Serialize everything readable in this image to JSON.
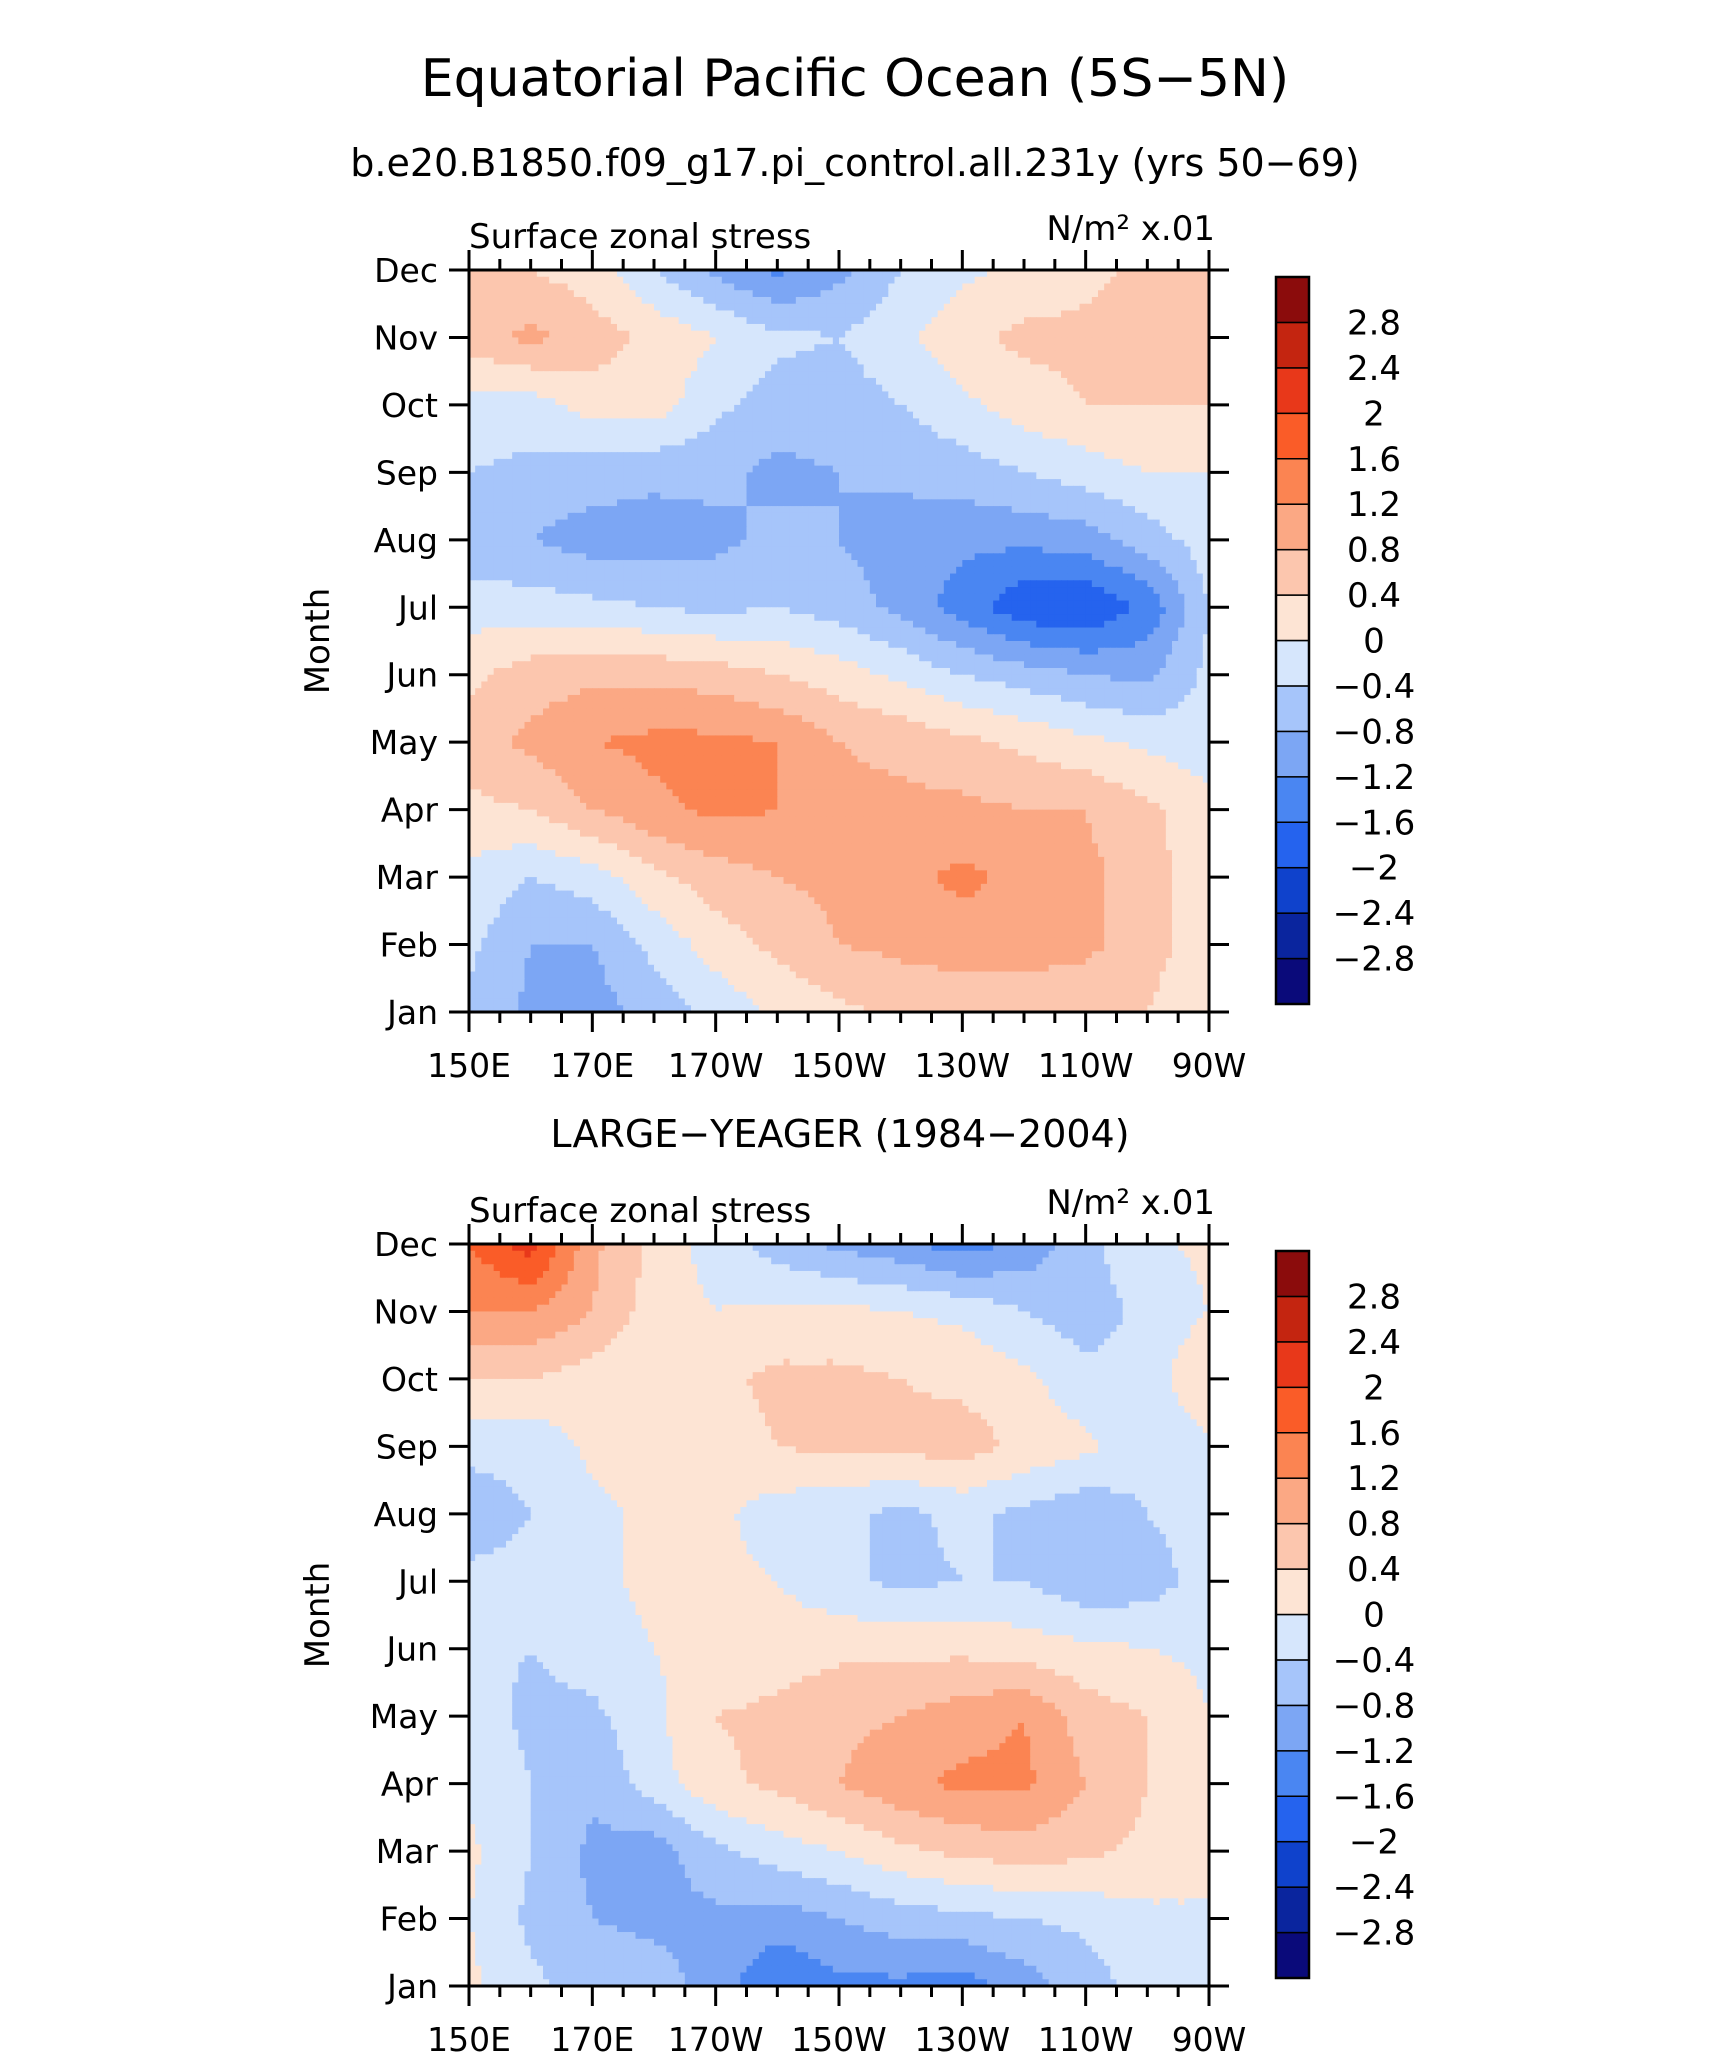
{
  "figure": {
    "title": "Equatorial Pacific Ocean (5S−5N)",
    "subtitle": "b.e20.B1850.f09_g17.pi_control.all.231y (yrs 50−69)"
  },
  "chart_data": [
    {
      "type": "heatmap",
      "title": "b.e20.B1850.f09_g17.pi_control.all.231y (yrs 50−69)",
      "left_label": "Surface zonal stress",
      "right_label": "N/m² x.01",
      "ylabel": "Month",
      "xticks": [
        "150E",
        "170E",
        "170W",
        "150W",
        "130W",
        "110W",
        "90W"
      ],
      "x_lon": [
        150,
        170,
        190,
        210,
        230,
        250,
        270
      ],
      "yticks": [
        "Jan",
        "Feb",
        "Mar",
        "Apr",
        "May",
        "Jun",
        "Jul",
        "Aug",
        "Sep",
        "Oct",
        "Nov",
        "Dec"
      ],
      "contour_levels": [
        -2.8,
        -2.4,
        -2,
        -1.6,
        -1.2,
        -0.8,
        -0.4,
        0,
        0.4,
        0.8,
        1.2,
        1.6,
        2,
        2.4,
        2.8
      ],
      "colorbar_labels": [
        "2.8",
        "2.4",
        "2",
        "1.6",
        "1.2",
        "0.8",
        "0.4",
        "0",
        "−0.4",
        "−0.8",
        "−1.2",
        "−1.6",
        "−2",
        "−2.4",
        "−2.8"
      ],
      "x": [
        150,
        160,
        170,
        180,
        190,
        200,
        210,
        220,
        230,
        240,
        250,
        260,
        270
      ],
      "rows": [
        [
          -0.5,
          -0.9,
          -1.0,
          -0.6,
          -0.3,
          0.1,
          0.3,
          0.5,
          0.5,
          0.5,
          0.5,
          0.4,
          0.0
        ],
        [
          -0.3,
          -0.8,
          -0.8,
          -0.3,
          0.2,
          0.5,
          0.8,
          0.9,
          1.0,
          1.0,
          0.9,
          0.6,
          0.1
        ],
        [
          -0.1,
          -0.4,
          -0.2,
          0.3,
          0.6,
          0.8,
          0.9,
          1.1,
          1.3,
          1.1,
          0.9,
          0.6,
          0.1
        ],
        [
          0.3,
          0.4,
          0.8,
          1.1,
          1.3,
          1.2,
          0.9,
          0.9,
          0.9,
          0.8,
          0.8,
          0.5,
          0.1
        ],
        [
          0.6,
          0.9,
          1.2,
          1.3,
          1.3,
          1.2,
          0.8,
          0.7,
          0.5,
          0.3,
          0.1,
          -0.1,
          -0.2
        ],
        [
          0.3,
          0.6,
          0.7,
          0.7,
          0.6,
          0.4,
          0.2,
          -0.1,
          -0.4,
          -0.6,
          -0.8,
          -0.9,
          -0.3
        ],
        [
          -0.2,
          -0.2,
          -0.3,
          -0.4,
          -0.5,
          -0.4,
          -0.6,
          -0.9,
          -1.4,
          -1.9,
          -2.0,
          -1.5,
          -0.4
        ],
        [
          -0.7,
          -0.8,
          -1.0,
          -1.0,
          -0.9,
          -0.7,
          -0.8,
          -1.0,
          -1.1,
          -1.1,
          -1.0,
          -0.6,
          -0.2
        ],
        [
          -0.4,
          -0.5,
          -0.6,
          -0.7,
          -0.7,
          -0.9,
          -0.8,
          -0.7,
          -0.6,
          -0.4,
          -0.2,
          0.0,
          0.0
        ],
        [
          -0.2,
          -0.2,
          0.2,
          0.2,
          -0.3,
          -0.6,
          -0.6,
          -0.4,
          -0.1,
          0.2,
          0.4,
          0.4,
          0.4
        ],
        [
          0.6,
          0.9,
          0.6,
          0.3,
          0.0,
          -0.3,
          -0.4,
          -0.1,
          0.3,
          0.5,
          0.5,
          0.5,
          0.5
        ],
        [
          0.4,
          0.4,
          0.2,
          -0.4,
          -0.9,
          -1.3,
          -0.9,
          -0.4,
          -0.1,
          0.1,
          0.3,
          0.5,
          0.5
        ]
      ]
    },
    {
      "type": "heatmap",
      "title": "LARGE−YEAGER (1984−2004)",
      "left_label": "Surface zonal stress",
      "right_label": "N/m² x.01",
      "ylabel": "Month",
      "xticks": [
        "150E",
        "170E",
        "170W",
        "150W",
        "130W",
        "110W",
        "90W"
      ],
      "x_lon": [
        150,
        170,
        190,
        210,
        230,
        250,
        270
      ],
      "yticks": [
        "Jan",
        "Feb",
        "Mar",
        "Apr",
        "May",
        "Jun",
        "Jul",
        "Aug",
        "Sep",
        "Oct",
        "Nov",
        "Dec"
      ],
      "contour_levels": [
        -2.8,
        -2.4,
        -2,
        -1.6,
        -1.2,
        -0.8,
        -0.4,
        0,
        0.4,
        0.8,
        1.2,
        1.6,
        2,
        2.4,
        2.8
      ],
      "colorbar_labels": [
        "2.8",
        "2.4",
        "2",
        "1.6",
        "1.2",
        "0.8",
        "0.4",
        "0",
        "−0.4",
        "−0.8",
        "−1.2",
        "−1.6",
        "−2",
        "−2.4",
        "−2.8"
      ],
      "x": [
        150,
        160,
        170,
        180,
        190,
        200,
        210,
        220,
        230,
        240,
        250,
        260,
        270
      ],
      "rows": [
        [
          0.1,
          -0.3,
          -0.6,
          -0.6,
          -1.0,
          -1.6,
          -1.3,
          -1.3,
          -1.4,
          -1.0,
          -0.6,
          -0.2,
          0.0
        ],
        [
          0.0,
          -0.5,
          -0.8,
          -0.9,
          -0.9,
          -1.0,
          -0.8,
          -0.6,
          -0.5,
          -0.4,
          -0.3,
          -0.1,
          0.0
        ],
        [
          0.1,
          -0.4,
          -0.9,
          -1.0,
          -0.5,
          -0.2,
          0.0,
          0.3,
          0.5,
          0.6,
          0.5,
          0.3,
          0.0
        ],
        [
          -0.1,
          -0.4,
          -0.7,
          -0.2,
          0.3,
          0.5,
          0.8,
          1.1,
          1.3,
          1.3,
          0.8,
          0.4,
          0.0
        ],
        [
          -0.2,
          -0.5,
          -0.5,
          -0.1,
          0.4,
          0.5,
          0.7,
          0.8,
          1.0,
          1.2,
          0.6,
          0.4,
          0.0
        ],
        [
          -0.3,
          -0.4,
          -0.2,
          0.0,
          0.1,
          0.2,
          0.3,
          0.3,
          0.3,
          0.2,
          0.1,
          0.0,
          -0.1
        ],
        [
          -0.3,
          -0.3,
          -0.1,
          0.1,
          0.1,
          0.0,
          -0.3,
          -0.5,
          -0.4,
          -0.4,
          -0.7,
          -0.6,
          -0.2
        ],
        [
          -0.6,
          -0.4,
          -0.1,
          0.1,
          0.1,
          -0.2,
          -0.3,
          -0.5,
          -0.3,
          -0.5,
          -0.7,
          -0.4,
          -0.2
        ],
        [
          -0.3,
          -0.3,
          0.1,
          0.2,
          0.2,
          0.4,
          0.5,
          0.5,
          0.6,
          0.3,
          0.1,
          -0.3,
          -0.1
        ],
        [
          0.4,
          0.4,
          0.2,
          0.1,
          0.3,
          0.5,
          0.5,
          0.4,
          0.3,
          0.1,
          -0.3,
          -0.2,
          0.4
        ],
        [
          1.2,
          1.2,
          0.8,
          0.2,
          0.0,
          0.1,
          0.1,
          0.0,
          -0.1,
          -0.4,
          -0.6,
          -0.3,
          0.0
        ],
        [
          1.6,
          2.2,
          0.9,
          0.3,
          -0.2,
          -0.6,
          -0.9,
          -1.1,
          -1.4,
          -1.1,
          -0.5,
          -0.1,
          0.1
        ]
      ]
    }
  ],
  "colors": {
    "level_fills_low_to_high": [
      "#0a0a7a",
      "#0a259e",
      "#0f42cc",
      "#2563ee",
      "#4a86f2",
      "#7ca6f4",
      "#a6c5fa",
      "#d6e6fc",
      "#fde4d4",
      "#fcc6ae",
      "#fba884",
      "#fb8452",
      "#fa5c28",
      "#e8381a",
      "#c42510",
      "#8b0c0c"
    ]
  }
}
